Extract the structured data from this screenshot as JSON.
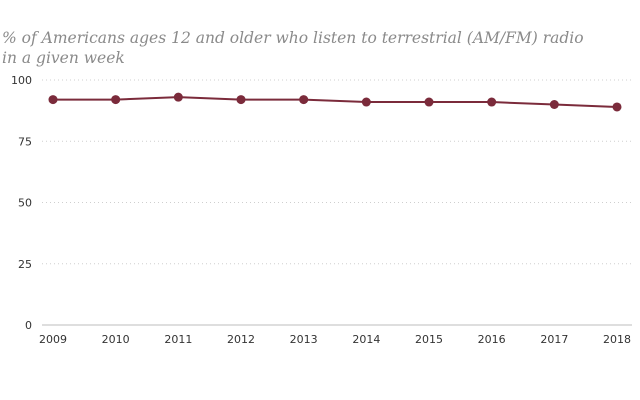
{
  "chart_data": {
    "type": "line",
    "title": "",
    "subtitle": "% of Americans ages 12 and older who listen to terrestrial (AM/FM) radio in a given week",
    "xlabel": "",
    "ylabel": "",
    "categories": [
      "2009",
      "2010",
      "2011",
      "2012",
      "2013",
      "2014",
      "2015",
      "2016",
      "2017",
      "2018"
    ],
    "series": [
      {
        "values": [
          92,
          92,
          93,
          92,
          92,
          91,
          91,
          91,
          90,
          89
        ],
        "color": "#7b2b3b"
      }
    ],
    "ylim": [
      0,
      100
    ],
    "yticks": [
      "0",
      "25",
      "50",
      "75",
      "100"
    ],
    "grid": true,
    "legend": "none"
  }
}
